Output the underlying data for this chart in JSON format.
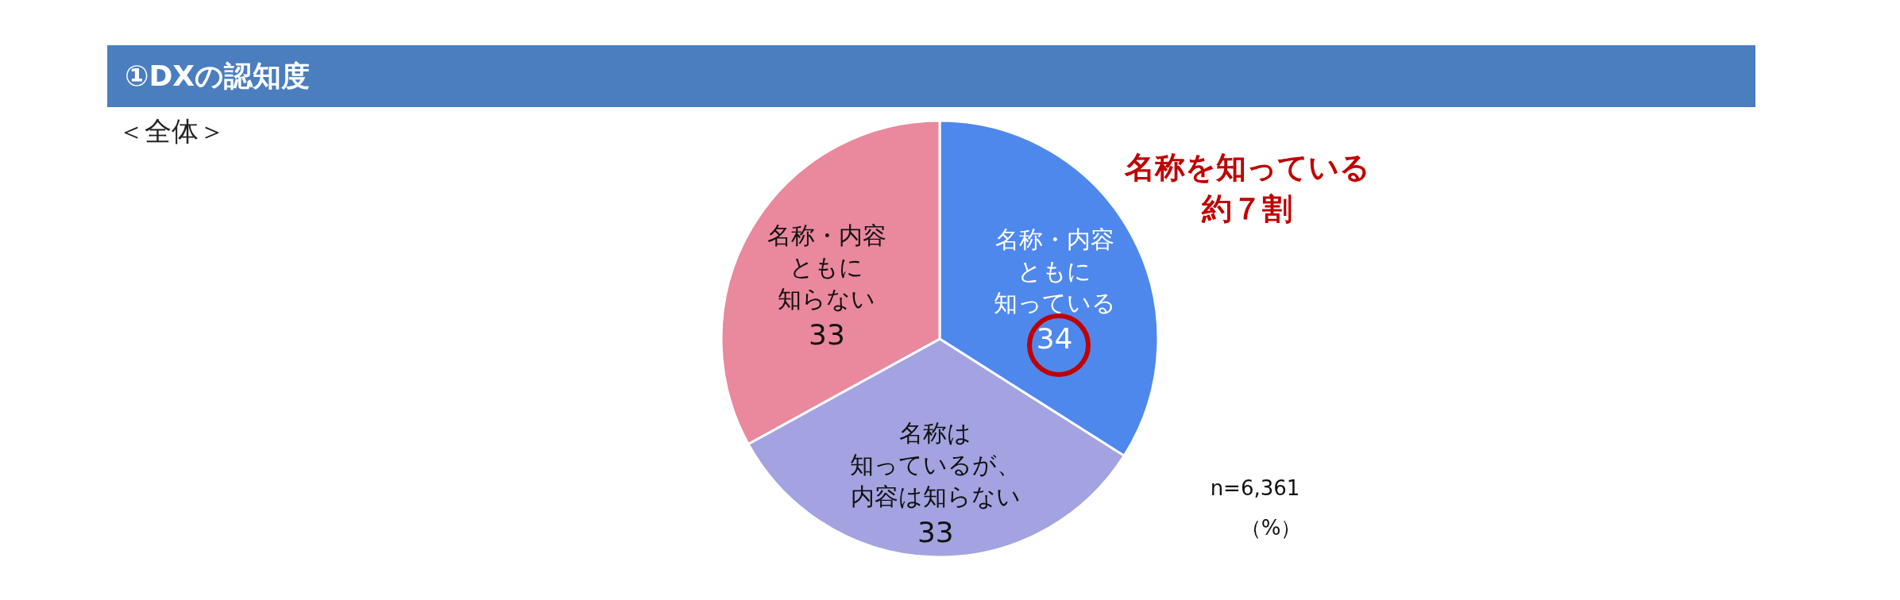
{
  "chart_data": {
    "type": "pie",
    "title": "①DXの認知度",
    "subtitle": "＜全体＞",
    "categories": [
      "名称・内容ともに知っている",
      "名称は知っているが、内容は知らない",
      "名称・内容ともに知らない"
    ],
    "values": [
      34,
      33,
      33
    ],
    "colors": [
      "#4f88ec",
      "#a3a3e1",
      "#ea889d"
    ],
    "data_labels": true,
    "annotations": [
      "名称を知っている約７割",
      "n=6,361",
      "（%）"
    ]
  }
}
